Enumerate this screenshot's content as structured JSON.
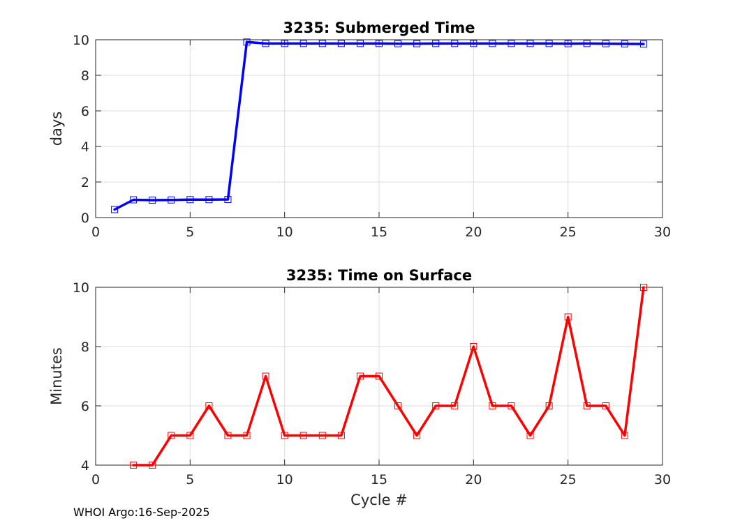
{
  "footer": "WHOI Argo:16-Sep-2025",
  "chart_data": [
    {
      "type": "line",
      "title": "3235: Submerged Time",
      "xlabel": "",
      "ylabel": "days",
      "xlim": [
        0,
        30
      ],
      "ylim": [
        0,
        10
      ],
      "xticks": [
        0,
        5,
        10,
        15,
        20,
        25,
        30
      ],
      "yticks": [
        0,
        2,
        4,
        6,
        8,
        10
      ],
      "grid": true,
      "color": "#0000ff",
      "marker": "square",
      "x": [
        1,
        2,
        3,
        4,
        5,
        6,
        7,
        8,
        9,
        10,
        11,
        12,
        13,
        14,
        15,
        16,
        17,
        18,
        19,
        20,
        21,
        22,
        23,
        24,
        25,
        26,
        27,
        28,
        29
      ],
      "y": [
        0.45,
        1.0,
        0.98,
        0.99,
        1.01,
        1.01,
        1.02,
        9.87,
        9.79,
        9.79,
        9.79,
        9.79,
        9.79,
        9.79,
        9.79,
        9.78,
        9.78,
        9.79,
        9.79,
        9.79,
        9.79,
        9.79,
        9.79,
        9.79,
        9.78,
        9.79,
        9.78,
        9.77,
        9.76
      ]
    },
    {
      "type": "line",
      "title": "3235: Time on Surface",
      "xlabel": "Cycle #",
      "ylabel": "Minutes",
      "xlim": [
        0,
        30
      ],
      "ylim": [
        4,
        10
      ],
      "xticks": [
        0,
        5,
        10,
        15,
        20,
        25,
        30
      ],
      "yticks": [
        4,
        6,
        8,
        10
      ],
      "grid": true,
      "color": "#ff0000",
      "marker": "square",
      "x": [
        2,
        3,
        4,
        5,
        6,
        7,
        8,
        9,
        10,
        11,
        12,
        13,
        14,
        15,
        16,
        17,
        18,
        19,
        20,
        21,
        22,
        23,
        24,
        25,
        26,
        27,
        28,
        29
      ],
      "y": [
        4,
        4,
        5,
        5,
        6,
        5,
        5,
        7,
        5,
        5,
        5,
        5,
        7,
        7,
        6,
        5,
        6,
        6,
        8,
        6,
        6,
        5,
        6,
        9,
        6,
        6,
        5,
        10
      ]
    }
  ]
}
